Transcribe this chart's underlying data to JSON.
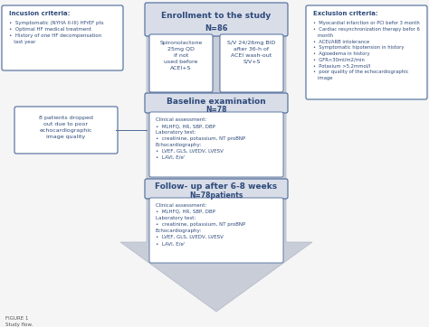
{
  "title": "Enrollment to the study",
  "n86": "N=86",
  "spiro_text": "Spironolactone\n25mg QD\nif not\nused before\nACEI+S",
  "sv_text": "S/V 24/26mg BID\nafter 36-h of\nACEI wash-out\nS/V+S",
  "baseline_title": "Baseline examination",
  "n78": "N=78",
  "baseline_content": "Clinical assessment:\n•  MLHFQ, HR, SBP, DBP\nLaboratory test:\n•  creatinine, potassium, NT proBNP\nEchocardiography:\n•  LVEF, GLS, LVEDV, LVESV\n•  LAVI, E/e'",
  "followup_title": "Follow- up after 6-8 weeks",
  "n78p": "N=78patients",
  "followup_content": "Clinical assessment:\n•  MLHFQ, HR, SBP, DBP\nLaboratory test:\n•  creatinine, potassium, NT proBNP\nEchocardiography:\n•  LVEF, GLS, LVEDV, LVESV\n•  LAVI, E/e'",
  "inclusion_title": "Incusion criteria:",
  "inclusion_content": "•  Symptomatic (NYHA II-III) HFrEF pts\n•  Optimal HF medical treatment\n•  History of one HF decompensation\n   last year",
  "dropped_text": "8 patients dropped\nout due to poor\nechocardiographic\nimage quality",
  "exclusion_title": "Exclusion criteria:",
  "exclusion_content": "•  Myocardial infarction or PCI befor 3 month\n•  Cardiac resynchronization therapy befor 6\n   month\n•  ACEi/ARB intolerance\n•  Symptomatic hipotension in history\n•  Agioedema in history\n•  GFR<30ml/m2/min\n•  Potasium >5.2mmol/l\n•  poor quality of the echocardiographic\n   image",
  "figure_label": "FIGURE 1\nStudy flow.",
  "main_color": "#2e4a7a",
  "box_border": "#4a6898",
  "arrow_color": "#c8cdd8",
  "bg_color": "#f5f5f5",
  "header_bg": "#d0d8e8"
}
